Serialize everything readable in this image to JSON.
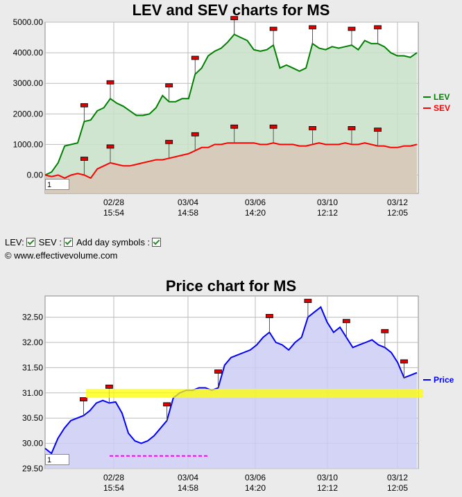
{
  "chart1": {
    "title": "LEV and SEV charts for MS",
    "zoom_value": "1",
    "legend": [
      {
        "name": "LEV",
        "color": "#008000"
      },
      {
        "name": "SEV",
        "color": "#ff0000"
      }
    ]
  },
  "chart2": {
    "title": "Price chart for MS",
    "zoom_value": "1",
    "legend": [
      {
        "name": "Price",
        "color": "#0000ff"
      }
    ]
  },
  "options": {
    "lev_label": "LEV:",
    "sev_label": "SEV :",
    "day_symbols_label": "Add day symbols :"
  },
  "credit": "© www.effectivevolume.com",
  "chart_data": [
    {
      "type": "area",
      "title": "LEV and SEV charts for MS",
      "ylim": [
        -600,
        5000
      ],
      "yticks": [
        "0.00",
        "1000.00",
        "2000.00",
        "3000.00",
        "4000.00",
        "5000.00"
      ],
      "xticks": [
        {
          "date": "02/28",
          "time": "15:54"
        },
        {
          "date": "03/04",
          "time": "14:58"
        },
        {
          "date": "03/06",
          "time": "14:20"
        },
        {
          "date": "03/10",
          "time": "12:12"
        },
        {
          "date": "03/12",
          "time": "12:05"
        }
      ],
      "grid": true,
      "legend_position": "right",
      "series": [
        {
          "name": "LEV",
          "color": "#008000",
          "fill": "#c8e0c8",
          "values": [
            0,
            100,
            400,
            950,
            1000,
            1050,
            1750,
            1800,
            2100,
            2200,
            2500,
            2350,
            2250,
            2100,
            1950,
            1950,
            2000,
            2200,
            2600,
            2400,
            2400,
            2500,
            2500,
            3300,
            3500,
            3900,
            4050,
            4150,
            4350,
            4600,
            4500,
            4400,
            4100,
            4050,
            4100,
            4250,
            3500,
            3600,
            3500,
            3400,
            3500,
            4300,
            4150,
            4100,
            4200,
            4150,
            4200,
            4250,
            4100,
            4400,
            4300,
            4300,
            4200,
            4000,
            3900,
            3900,
            3850,
            4000
          ]
        },
        {
          "name": "SEV",
          "color": "#ff0000",
          "fill": "#d8c8b8",
          "values": [
            0,
            -50,
            0,
            -100,
            0,
            50,
            0,
            -100,
            200,
            300,
            400,
            350,
            300,
            300,
            350,
            400,
            450,
            500,
            500,
            550,
            600,
            650,
            700,
            800,
            900,
            900,
            1000,
            1000,
            1050,
            1050,
            1050,
            1050,
            1050,
            1000,
            1000,
            1050,
            1000,
            1000,
            1000,
            950,
            950,
            1000,
            1050,
            1000,
            1000,
            1000,
            1050,
            1000,
            1000,
            1050,
            1000,
            950,
            950,
            900,
            900,
            950,
            950,
            1000
          ]
        }
      ]
    },
    {
      "type": "area",
      "title": "Price chart for MS",
      "ylim": [
        29.5,
        32.92
      ],
      "yticks": [
        "29.50",
        "30.00",
        "30.50",
        "31.00",
        "31.50",
        "32.00",
        "32.50"
      ],
      "xticks": [
        {
          "date": "02/28",
          "time": "15:54"
        },
        {
          "date": "03/04",
          "time": "14:58"
        },
        {
          "date": "03/06",
          "time": "14:20"
        },
        {
          "date": "03/10",
          "time": "12:12"
        },
        {
          "date": "03/12",
          "time": "12:05"
        }
      ],
      "grid": true,
      "legend_position": "right",
      "series": [
        {
          "name": "Price",
          "color": "#0000ff",
          "fill": "#ccccf6",
          "values": [
            29.9,
            29.8,
            30.1,
            30.3,
            30.45,
            30.5,
            30.55,
            30.65,
            30.8,
            30.85,
            30.8,
            30.82,
            30.6,
            30.2,
            30.05,
            30.0,
            30.05,
            30.15,
            30.3,
            30.45,
            30.9,
            31.0,
            31.05,
            31.05,
            31.1,
            31.1,
            31.05,
            31.1,
            31.55,
            31.7,
            31.75,
            31.8,
            31.85,
            31.95,
            32.1,
            32.2,
            32.0,
            31.95,
            31.85,
            32.0,
            32.1,
            32.5,
            32.6,
            32.7,
            32.4,
            32.2,
            32.3,
            32.1,
            31.9,
            31.95,
            32.0,
            32.05,
            31.95,
            31.9,
            31.8,
            31.6,
            31.3,
            31.35,
            31.4
          ]
        }
      ],
      "annotations": {
        "highlight_band": [
          30.9,
          31.08
        ],
        "dashed_level": 29.75
      }
    }
  ]
}
